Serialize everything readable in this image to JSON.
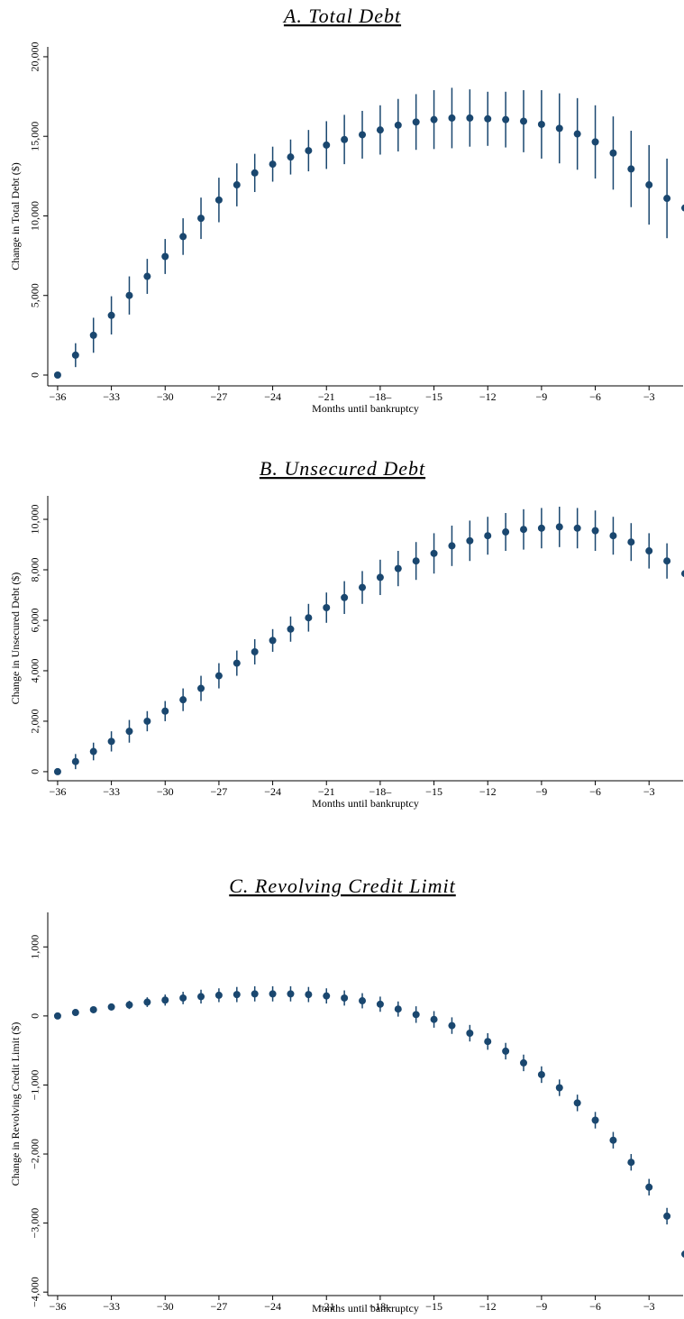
{
  "chart_data": [
    {
      "type": "scatter",
      "title": "A. Total Debt",
      "x_label": "Months until bankruptcy",
      "y_label": "Change in Total Debt ($)",
      "color": "#1a476f",
      "x": [
        -36,
        -35,
        -34,
        -33,
        -32,
        -31,
        -30,
        -29,
        -28,
        -27,
        -26,
        -25,
        -24,
        -23,
        -22,
        -21,
        -20,
        -19,
        -18,
        -17,
        -16,
        -15,
        -14,
        -13,
        -12,
        -11,
        -10,
        -9,
        -8,
        -7,
        -6,
        -5,
        -4,
        -3,
        -2,
        -1
      ],
      "values": [
        0,
        1250,
        2500,
        3750,
        5000,
        6200,
        7450,
        8700,
        9850,
        11000,
        11950,
        12700,
        13250,
        13700,
        14100,
        14450,
        14800,
        15100,
        15400,
        15700,
        15900,
        16050,
        16150,
        16150,
        16100,
        16050,
        15950,
        15750,
        15500,
        15150,
        14650,
        13950,
        12950,
        11950,
        11100,
        10500
      ],
      "errors": [
        0,
        750,
        1100,
        1200,
        1200,
        1100,
        1100,
        1150,
        1300,
        1400,
        1350,
        1200,
        1100,
        1100,
        1300,
        1500,
        1550,
        1500,
        1550,
        1650,
        1750,
        1850,
        1900,
        1800,
        1700,
        1750,
        1950,
        2150,
        2200,
        2250,
        2300,
        2300,
        2400,
        2500,
        2500,
        2400
      ],
      "xlim": [
        -36.55,
        -1.1
      ],
      "ylim": [
        -680,
        20620
      ],
      "xticks": [
        {
          "value": -36,
          "label": "−36"
        },
        {
          "value": -33,
          "label": "−33"
        },
        {
          "value": -30,
          "label": "−30"
        },
        {
          "value": -27,
          "label": "−27"
        },
        {
          "value": -24,
          "label": "−24"
        },
        {
          "value": -21,
          "label": "−21"
        },
        {
          "value": -18,
          "label": "−18–"
        },
        {
          "value": -15,
          "label": "−15"
        },
        {
          "value": -12,
          "label": "−12"
        },
        {
          "value": -9,
          "label": "−9"
        },
        {
          "value": -6,
          "label": "−6"
        },
        {
          "value": -3,
          "label": "−3"
        }
      ],
      "yticks": [
        0,
        {
          "value": 5000,
          "label": "5,000"
        },
        {
          "value": 10000,
          "label": "10,000"
        },
        {
          "value": 15000,
          "label": "15,000"
        },
        {
          "value": 20000,
          "label": "20,000"
        }
      ]
    },
    {
      "type": "scatter",
      "title": "B. Unsecured Debt",
      "x_label": "Months until bankruptcy",
      "y_label": "Change in Unsecured Debt ($)",
      "color": "#1a476f",
      "x": [
        -36,
        -35,
        -34,
        -33,
        -32,
        -31,
        -30,
        -29,
        -28,
        -27,
        -26,
        -25,
        -24,
        -23,
        -22,
        -21,
        -20,
        -19,
        -18,
        -17,
        -16,
        -15,
        -14,
        -13,
        -12,
        -11,
        -10,
        -9,
        -8,
        -7,
        -6,
        -5,
        -4,
        -3,
        -2,
        -1
      ],
      "values": [
        0,
        400,
        800,
        1200,
        1600,
        2000,
        2400,
        2850,
        3300,
        3800,
        4300,
        4750,
        5200,
        5650,
        6100,
        6500,
        6900,
        7300,
        7700,
        8050,
        8350,
        8650,
        8950,
        9150,
        9350,
        9500,
        9600,
        9650,
        9700,
        9650,
        9550,
        9350,
        9100,
        8750,
        8350,
        7850
      ],
      "errors": [
        0,
        300,
        350,
        400,
        450,
        400,
        400,
        450,
        500,
        500,
        500,
        500,
        450,
        500,
        550,
        600,
        650,
        650,
        700,
        700,
        750,
        800,
        800,
        800,
        750,
        750,
        800,
        800,
        800,
        800,
        800,
        750,
        750,
        700,
        700,
        650
      ],
      "xlim": [
        -36.55,
        -1.1
      ],
      "ylim": [
        -360,
        10930
      ],
      "xticks": [
        {
          "value": -36,
          "label": "−36"
        },
        {
          "value": -33,
          "label": "−33"
        },
        {
          "value": -30,
          "label": "−30"
        },
        {
          "value": -27,
          "label": "−27"
        },
        {
          "value": -24,
          "label": "−24"
        },
        {
          "value": -21,
          "label": "−21"
        },
        {
          "value": -18,
          "label": "−18–"
        },
        {
          "value": -15,
          "label": "−15"
        },
        {
          "value": -12,
          "label": "−12"
        },
        {
          "value": -9,
          "label": "−9"
        },
        {
          "value": -6,
          "label": "−6"
        },
        {
          "value": -3,
          "label": "−3"
        }
      ],
      "yticks": [
        0,
        {
          "value": 2000,
          "label": "2,000"
        },
        {
          "value": 4000,
          "label": "4,000"
        },
        {
          "value": 6000,
          "label": "6,000"
        },
        {
          "value": 8000,
          "label": "8,000"
        },
        {
          "value": 10000,
          "label": "10,000"
        }
      ]
    },
    {
      "type": "scatter",
      "title": "C. Revolving Credit Limit",
      "x_label": "Months until bankruptcy",
      "y_label": "Change in Revolving Credit Limit ($)",
      "color": "#1a476f",
      "x": [
        -36,
        -35,
        -34,
        -33,
        -32,
        -31,
        -30,
        -29,
        -28,
        -27,
        -26,
        -25,
        -24,
        -23,
        -22,
        -21,
        -20,
        -19,
        -18,
        -17,
        -16,
        -15,
        -14,
        -13,
        -12,
        -11,
        -10,
        -9,
        -8,
        -7,
        -6,
        -5,
        -4,
        -3,
        -2,
        -1
      ],
      "values": [
        0,
        50,
        90,
        130,
        160,
        200,
        230,
        260,
        280,
        300,
        310,
        320,
        320,
        320,
        310,
        290,
        260,
        220,
        170,
        100,
        20,
        -50,
        -140,
        -250,
        -370,
        -510,
        -680,
        -850,
        -1040,
        -1260,
        -1510,
        -1800,
        -2120,
        -2480,
        -2900,
        -3450
      ],
      "errors": [
        0,
        30,
        40,
        50,
        60,
        70,
        80,
        90,
        100,
        100,
        110,
        110,
        110,
        110,
        110,
        110,
        110,
        110,
        110,
        110,
        120,
        120,
        120,
        120,
        120,
        120,
        120,
        120,
        120,
        120,
        120,
        120,
        120,
        120,
        120,
        120
      ],
      "xlim": [
        -36.55,
        -1.1
      ],
      "ylim": [
        -4050,
        1500
      ],
      "xticks": [
        {
          "value": -36,
          "label": "−36"
        },
        {
          "value": -33,
          "label": "−33"
        },
        {
          "value": -30,
          "label": "−30"
        },
        {
          "value": -27,
          "label": "−27"
        },
        {
          "value": -24,
          "label": "−24"
        },
        {
          "value": -21,
          "label": "−21"
        },
        {
          "value": -18,
          "label": "−18–"
        },
        {
          "value": -15,
          "label": "−15"
        },
        {
          "value": -12,
          "label": "−12"
        },
        {
          "value": -9,
          "label": "−9"
        },
        {
          "value": -6,
          "label": "−6"
        },
        {
          "value": -3,
          "label": "−3"
        }
      ],
      "yticks": [
        {
          "value": -4000,
          "label": "−4,000"
        },
        {
          "value": -3000,
          "label": "−3,000"
        },
        {
          "value": -2000,
          "label": "−2,000"
        },
        {
          "value": -1000,
          "label": "−1,000"
        },
        0,
        {
          "value": 1000,
          "label": "1,000"
        }
      ]
    }
  ]
}
